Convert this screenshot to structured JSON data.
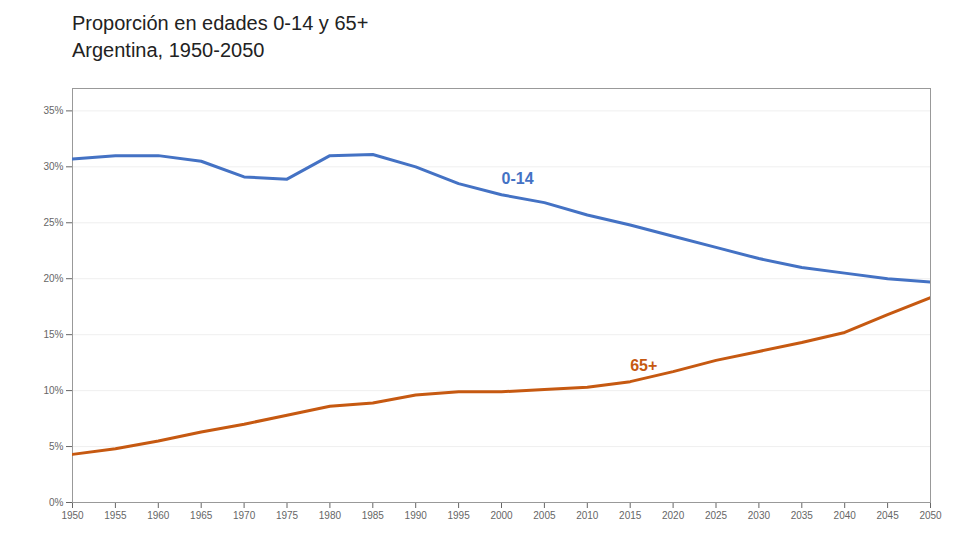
{
  "chart_data": {
    "type": "line",
    "title": "Proporción en edades 0-14 y 65+\nArgentina, 1950-2050",
    "x": [
      1950,
      1955,
      1960,
      1965,
      1970,
      1975,
      1980,
      1985,
      1990,
      1995,
      2000,
      2005,
      2010,
      2015,
      2020,
      2025,
      2030,
      2035,
      2040,
      2045,
      2050
    ],
    "series": [
      {
        "name": "0-14",
        "color": "#4472C4",
        "values": [
          0.307,
          0.31,
          0.31,
          0.305,
          0.291,
          0.289,
          0.31,
          0.311,
          0.3,
          0.285,
          0.275,
          0.268,
          0.257,
          0.248,
          0.238,
          0.228,
          0.218,
          0.21,
          0.205,
          0.2,
          0.197
        ]
      },
      {
        "name": "65+",
        "color": "#C65911",
        "values": [
          0.043,
          0.048,
          0.055,
          0.063,
          0.07,
          0.078,
          0.086,
          0.089,
          0.096,
          0.099,
          0.099,
          0.101,
          0.103,
          0.108,
          0.117,
          0.127,
          0.135,
          0.143,
          0.152,
          0.168,
          0.183
        ]
      }
    ],
    "xlim": [
      1950,
      2050
    ],
    "xticks": [
      1950,
      1955,
      1960,
      1965,
      1970,
      1975,
      1980,
      1985,
      1990,
      1995,
      2000,
      2005,
      2010,
      2015,
      2020,
      2025,
      2030,
      2035,
      2040,
      2045,
      2050
    ],
    "ylim": [
      0,
      0.37
    ],
    "yticks": [
      {
        "value": 0.0,
        "label": "0%"
      },
      {
        "value": 0.05,
        "label": "5%"
      },
      {
        "value": 0.1,
        "label": "10%"
      },
      {
        "value": 0.15,
        "label": "15%"
      },
      {
        "value": 0.2,
        "label": "20%"
      },
      {
        "value": 0.25,
        "label": "25%"
      },
      {
        "value": 0.3,
        "label": "30%"
      },
      {
        "value": 0.35,
        "label": "35%"
      }
    ],
    "grid": true
  }
}
